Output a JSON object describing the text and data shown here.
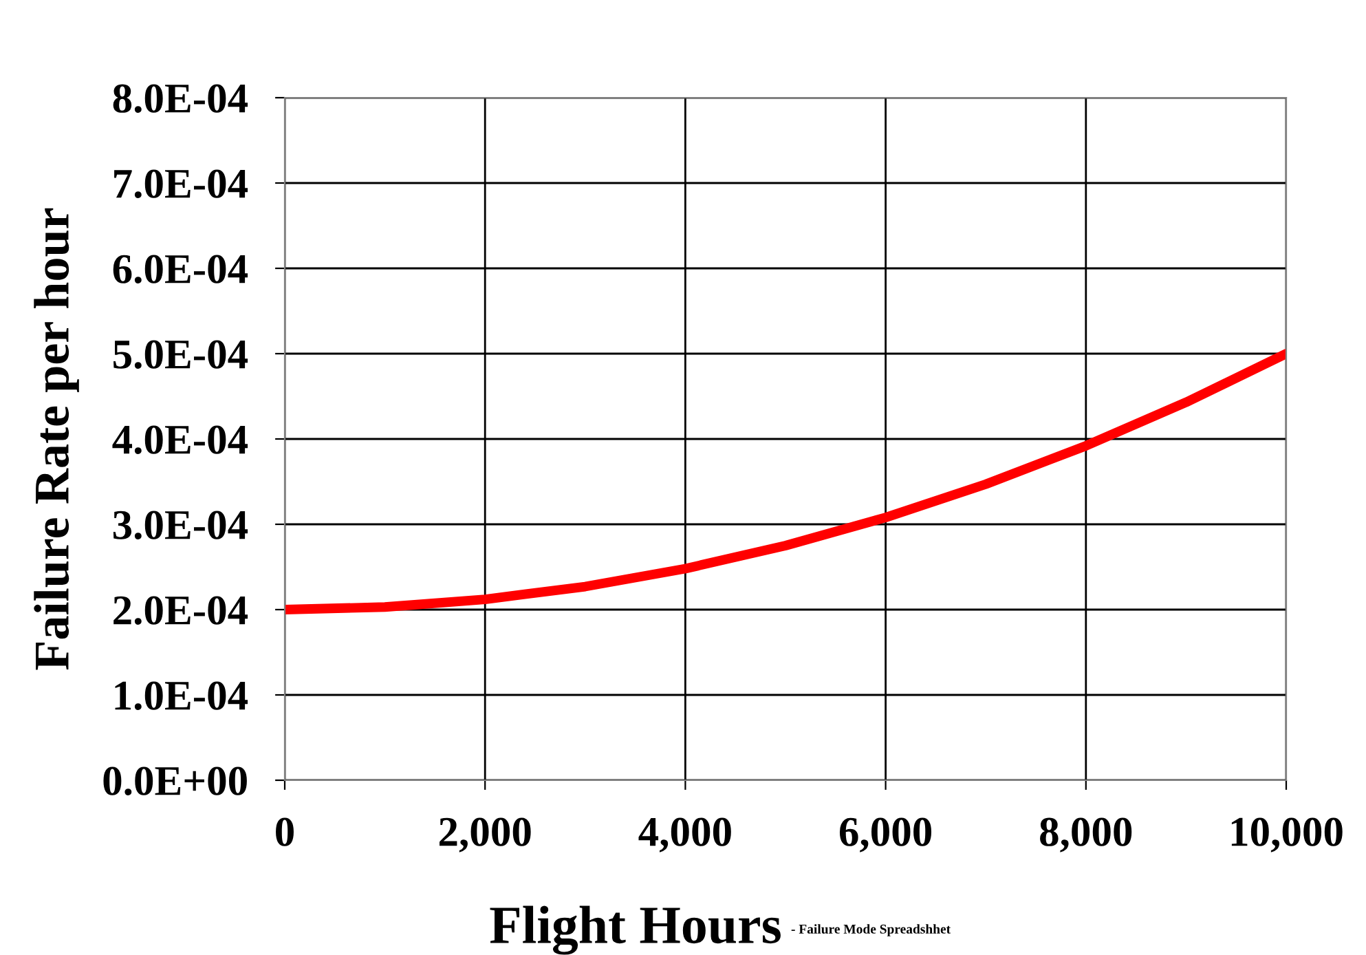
{
  "chart_data": {
    "type": "line",
    "xlabel": "Flight Hours",
    "ylabel": "Failure Rate per hour",
    "annotations": [
      "- Failure Mode Spreadshhet"
    ],
    "x": [
      0,
      1000,
      2000,
      3000,
      4000,
      5000,
      6000,
      7000,
      8000,
      9000,
      10000
    ],
    "series": [
      {
        "color": "#ff0000",
        "values": [
          0.0002,
          0.000203,
          0.000212,
          0.000227,
          0.000248,
          0.000275,
          0.000308,
          0.000347,
          0.000392,
          0.000443,
          0.0005
        ]
      }
    ],
    "xlim": [
      0,
      10000
    ],
    "ylim": [
      0,
      0.0008
    ],
    "xticks": [
      0,
      {
        "value": 2000,
        "label": "2,000"
      },
      {
        "value": 4000,
        "label": "4,000"
      },
      {
        "value": 6000,
        "label": "6,000"
      },
      {
        "value": 8000,
        "label": "8,000"
      },
      {
        "value": 10000,
        "label": "10,000"
      }
    ],
    "yticks": [
      {
        "value": 0,
        "label": "0.0E+00"
      },
      {
        "value": 0.0001,
        "label": "1.0E-04"
      },
      {
        "value": 0.0002,
        "label": "2.0E-04"
      },
      {
        "value": 0.0003,
        "label": "3.0E-04"
      },
      {
        "value": 0.0004,
        "label": "4.0E-04"
      },
      {
        "value": 0.0005,
        "label": "5.0E-04"
      },
      {
        "value": 0.0006,
        "label": "6.0E-04"
      },
      {
        "value": 0.0007,
        "label": "7.0E-04"
      },
      {
        "value": 0.0008,
        "label": "8.0E-04"
      }
    ],
    "grid": true,
    "line_style": "solid"
  }
}
